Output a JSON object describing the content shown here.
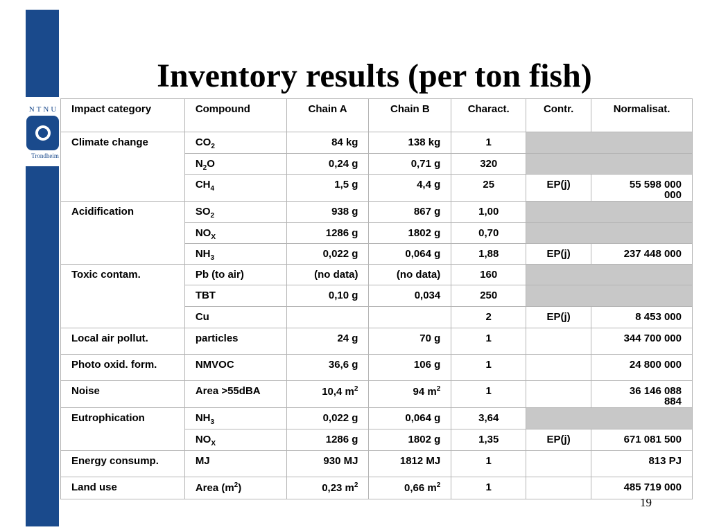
{
  "slide": {
    "title": "Inventory results (per ton fish)",
    "page_number": "19"
  },
  "logo": {
    "letters": "NTNU",
    "city": "Trondheim"
  },
  "table": {
    "headers": [
      "Impact category",
      "Compound",
      "Chain A",
      "Chain B",
      "Charact.",
      "Contr.",
      "Normalisat."
    ],
    "categories": {
      "climate": "Climate change",
      "acid": "Acidification",
      "toxic": "Toxic contam.",
      "local_air": "Local air pollut.",
      "photo": "Photo oxid. form.",
      "noise": "Noise",
      "eutro": "Eutrophication",
      "energy": "Energy consump.",
      "land": "Land use"
    },
    "rows": {
      "co2": {
        "compound": "CO",
        "sub": "2",
        "chain_a": "84 kg",
        "chain_b": "138 kg",
        "charact": "1"
      },
      "n2o": {
        "compound_pre": "N",
        "sub": "2",
        "compound_post": "O",
        "chain_a": "0,24 g",
        "chain_b": "0,71 g",
        "charact": "320"
      },
      "ch4": {
        "compound": "CH",
        "sub": "4",
        "chain_a": "1,5 g",
        "chain_b": "4,4 g",
        "charact": "25",
        "contr": "EP(j)",
        "norm_line1": "55 598 000",
        "norm_line2": "000"
      },
      "so2": {
        "compound": "SO",
        "sub": "2",
        "chain_a": "938 g",
        "chain_b": "867 g",
        "charact": "1,00"
      },
      "nox_a": {
        "compound": "NO",
        "sub": "X",
        "chain_a": "1286 g",
        "chain_b": "1802 g",
        "charact": "0,70"
      },
      "nh3_a": {
        "compound": "NH",
        "sub": "3",
        "chain_a": "0,022 g",
        "chain_b": "0,064 g",
        "charact": "1,88",
        "contr": "EP(j)",
        "norm": "237 448 000"
      },
      "pb": {
        "compound": "Pb (to air)",
        "chain_a": "(no data)",
        "chain_b": "(no data)",
        "charact": "160"
      },
      "tbt": {
        "compound": "TBT",
        "chain_a": "0,10 g",
        "chain_b": "0,034",
        "charact": "250"
      },
      "cu": {
        "compound": "Cu",
        "chain_a": "",
        "chain_b": "",
        "charact": "2",
        "contr": "EP(j)",
        "norm": "8 453 000"
      },
      "part": {
        "compound": "particles",
        "chain_a": "24 g",
        "chain_b": "70 g",
        "charact": "1",
        "norm": "344 700 000"
      },
      "nmvoc": {
        "compound": "NMVOC",
        "chain_a": "36,6 g",
        "chain_b": "106 g",
        "charact": "1",
        "norm": "24 800 000"
      },
      "area": {
        "compound": "Area >55dBA",
        "chain_a": "10,4 m",
        "chain_a_sup": "2",
        "chain_b": "94 m",
        "chain_b_sup": "2",
        "charact": "1",
        "norm_line1": "36 146 088",
        "norm_line2": "884"
      },
      "nh3_e": {
        "compound": "NH",
        "sub": "3",
        "chain_a": "0,022 g",
        "chain_b": "0,064 g",
        "charact": "3,64"
      },
      "nox_e": {
        "compound": "NO",
        "sub": "X",
        "chain_a": "1286 g",
        "chain_b": "1802 g",
        "charact": "1,35",
        "contr": "EP(j)",
        "norm": "671 081 500"
      },
      "mj": {
        "compound": "MJ",
        "chain_a": "930 MJ",
        "chain_b": "1812 MJ",
        "charact": "1",
        "norm": "813 PJ"
      },
      "land": {
        "compound_pre": "Area (m",
        "sup": "2",
        "compound_post": ")",
        "chain_a": "0,23 m",
        "chain_a_sup": "2",
        "chain_b": "0,66 m",
        "chain_b_sup": "2",
        "charact": "1",
        "norm": "485 719 000"
      }
    }
  }
}
